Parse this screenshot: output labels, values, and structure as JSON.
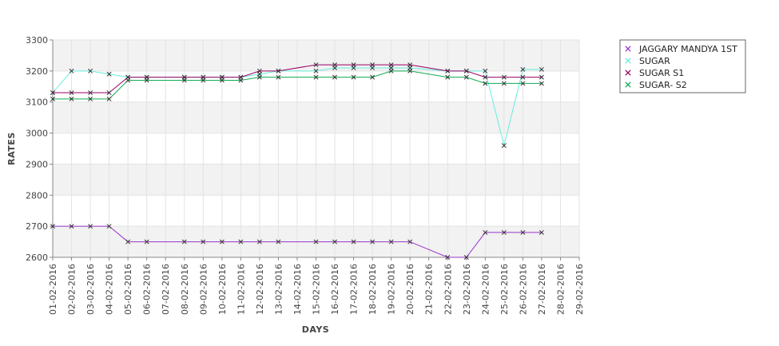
{
  "chart_data": {
    "type": "line",
    "title": "",
    "xlabel": "DAYS",
    "ylabel": "RATES",
    "ylim": [
      2600,
      3300
    ],
    "yticks": [
      2600,
      2700,
      2800,
      2900,
      3000,
      3100,
      3200,
      3300
    ],
    "grid": true,
    "legend_position": "top-right",
    "categories": [
      "01-02-2016",
      "02-02-2016",
      "03-02-2016",
      "04-02-2016",
      "05-02-2016",
      "06-02-2016",
      "07-02-2016",
      "08-02-2016",
      "09-02-2016",
      "10-02-2016",
      "11-02-2016",
      "12-02-2016",
      "13-02-2016",
      "14-02-2016",
      "15-02-2016",
      "16-02-2016",
      "17-02-2016",
      "18-02-2016",
      "19-02-2016",
      "20-02-2016",
      "21-02-2016",
      "22-02-2016",
      "23-02-2016",
      "24-02-2016",
      "25-02-2016",
      "26-02-2016",
      "27-02-2016",
      "28-02-2016",
      "29-02-2016"
    ],
    "series": [
      {
        "name": "JAGGARY MANDYA 1ST",
        "color": "#9933cc",
        "values": [
          2700,
          2700,
          2700,
          2700,
          2650,
          2650,
          null,
          2650,
          2650,
          2650,
          2650,
          2650,
          2650,
          null,
          2650,
          2650,
          2650,
          2650,
          2650,
          2650,
          null,
          2600,
          2600,
          2680,
          2680,
          2680,
          2680,
          null,
          null
        ]
      },
      {
        "name": "SUGAR",
        "color": "#66eedd",
        "values": [
          3130,
          3200,
          3200,
          3190,
          3180,
          3180,
          null,
          3180,
          3180,
          3180,
          3180,
          3190,
          3200,
          null,
          3200,
          3210,
          3210,
          3210,
          3210,
          3210,
          null,
          3200,
          3200,
          3200,
          2960,
          3205,
          3205,
          null,
          null
        ]
      },
      {
        "name": "SUGAR S1",
        "color": "#990066",
        "values": [
          3130,
          3130,
          3130,
          3130,
          3180,
          3180,
          null,
          3180,
          3180,
          3180,
          3180,
          3200,
          3200,
          null,
          3220,
          3220,
          3220,
          3220,
          3220,
          3220,
          null,
          3200,
          3200,
          3180,
          3180,
          3180,
          3180,
          null,
          null
        ]
      },
      {
        "name": "SUGAR- S2",
        "color": "#11aa55",
        "values": [
          3110,
          3110,
          3110,
          3110,
          3170,
          3170,
          null,
          3170,
          3170,
          3170,
          3170,
          3180,
          3180,
          null,
          3180,
          3180,
          3180,
          3180,
          3200,
          3200,
          null,
          3180,
          3180,
          3160,
          3160,
          3160,
          3160,
          null,
          null
        ]
      }
    ]
  }
}
